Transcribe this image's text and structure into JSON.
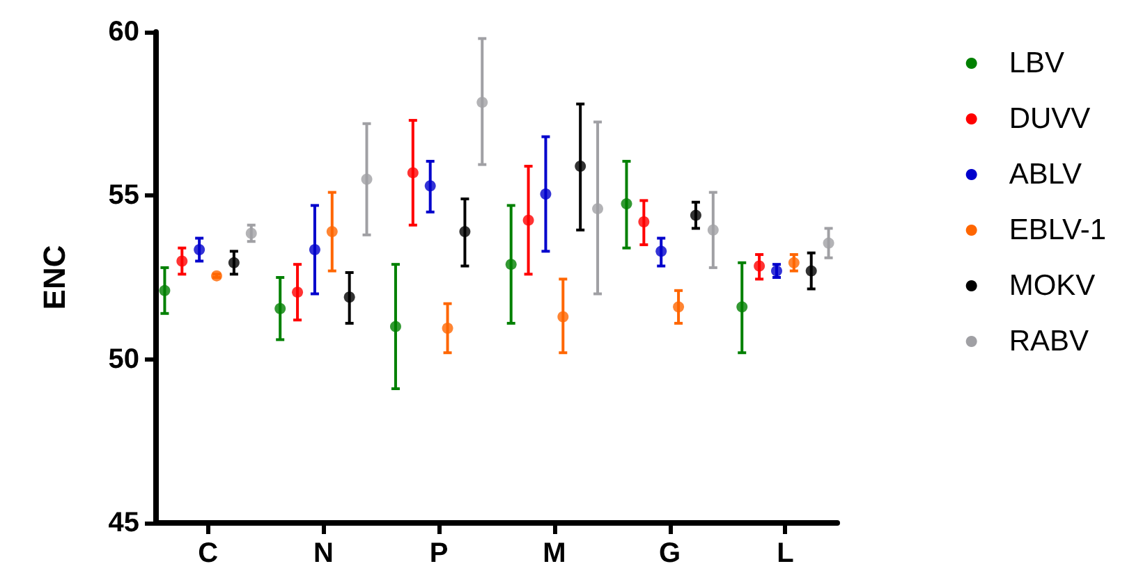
{
  "chart_data": {
    "type": "scatter",
    "ylabel": "ENC",
    "categories": [
      "C",
      "N",
      "P",
      "M",
      "G",
      "L"
    ],
    "ylim": [
      45,
      60
    ],
    "yticks": [
      45,
      50,
      55,
      60
    ],
    "grid": false,
    "legend": "right",
    "marker": "circle",
    "series": [
      {
        "name": "LBV",
        "color": "#008000",
        "values": [
          52.1,
          51.55,
          51.0,
          52.9,
          54.75,
          51.6
        ],
        "errors": [
          [
            51.4,
            52.8
          ],
          [
            50.6,
            52.5
          ],
          [
            49.1,
            52.9
          ],
          [
            51.1,
            54.7
          ],
          [
            53.4,
            56.05
          ],
          [
            50.2,
            52.95
          ]
        ]
      },
      {
        "name": "DUVV",
        "color": "#ff0000",
        "values": [
          53.0,
          52.05,
          55.7,
          54.25,
          54.2,
          52.85
        ],
        "errors": [
          [
            52.6,
            53.4
          ],
          [
            51.2,
            52.9
          ],
          [
            54.1,
            57.3
          ],
          [
            52.6,
            55.9
          ],
          [
            53.5,
            54.85
          ],
          [
            52.45,
            53.2
          ]
        ]
      },
      {
        "name": "ABLV",
        "color": "#0000cc",
        "values": [
          53.35,
          53.35,
          55.3,
          55.05,
          53.3,
          52.7
        ],
        "errors": [
          [
            53.0,
            53.7
          ],
          [
            52.0,
            54.7
          ],
          [
            54.5,
            56.05
          ],
          [
            53.3,
            56.8
          ],
          [
            52.85,
            53.7
          ],
          [
            52.5,
            52.9
          ]
        ]
      },
      {
        "name": "EBLV-1",
        "color": "#ff6600",
        "values": [
          52.55,
          53.9,
          50.95,
          51.3,
          51.6,
          52.95
        ],
        "errors": [
          [
            52.5,
            52.6
          ],
          [
            52.7,
            55.1
          ],
          [
            50.2,
            51.7
          ],
          [
            50.2,
            52.45
          ],
          [
            51.1,
            52.1
          ],
          [
            52.7,
            53.2
          ]
        ]
      },
      {
        "name": "MOKV",
        "color": "#000000",
        "values": [
          52.95,
          51.9,
          53.9,
          55.9,
          54.4,
          52.7
        ],
        "errors": [
          [
            52.6,
            53.3
          ],
          [
            51.1,
            52.65
          ],
          [
            52.85,
            54.9
          ],
          [
            53.95,
            57.8
          ],
          [
            54.0,
            54.8
          ],
          [
            52.15,
            53.25
          ]
        ]
      },
      {
        "name": "RABV",
        "color": "#a0a0a4",
        "values": [
          53.85,
          55.5,
          57.85,
          54.6,
          53.95,
          53.55
        ],
        "errors": [
          [
            53.6,
            54.1
          ],
          [
            53.8,
            57.2
          ],
          [
            55.95,
            59.8
          ],
          [
            52.0,
            57.25
          ],
          [
            52.8,
            55.1
          ],
          [
            53.1,
            54.0
          ]
        ]
      }
    ]
  }
}
